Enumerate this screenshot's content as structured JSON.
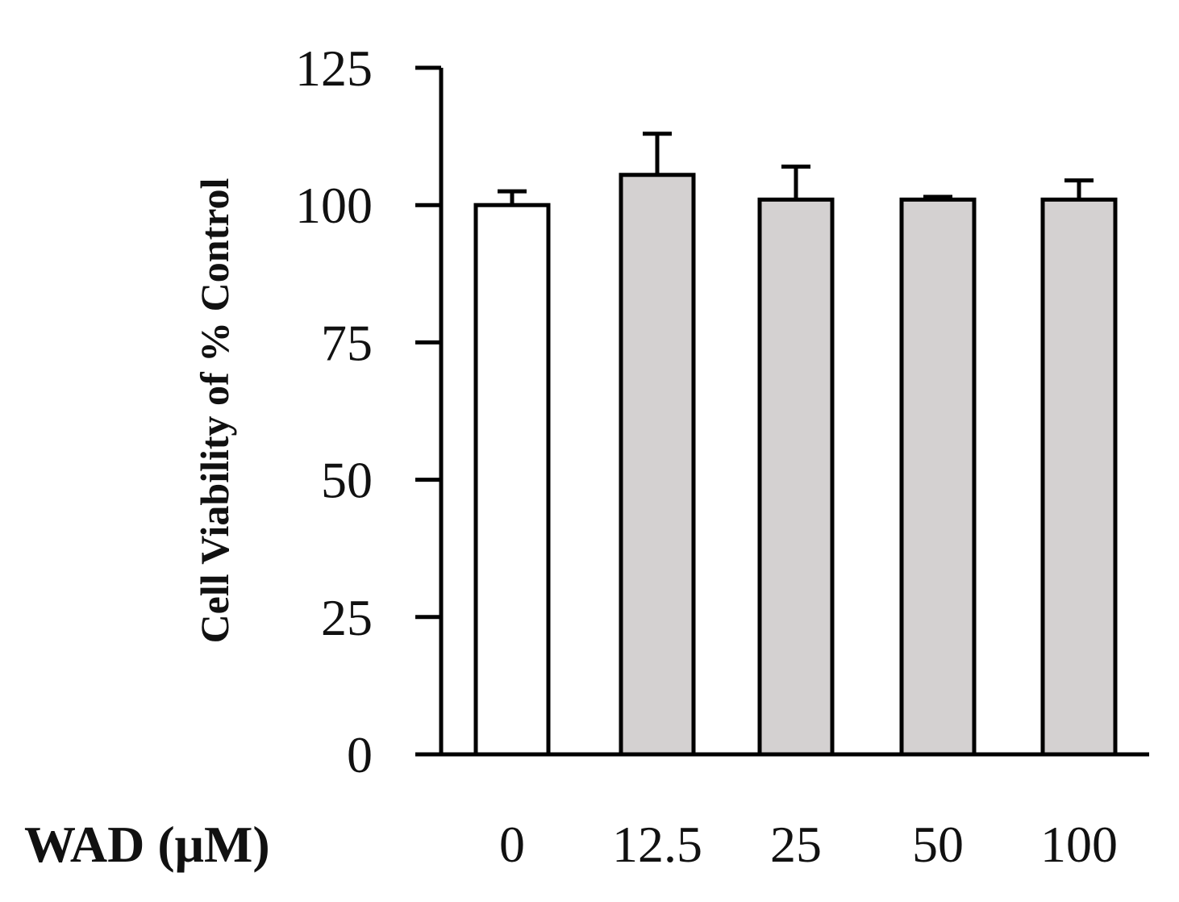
{
  "chart_data": {
    "type": "bar",
    "title": "",
    "xlabel": "WAD (μM)",
    "ylabel": "Cell Viability of % Control",
    "categories": [
      "0",
      "12.5",
      "25",
      "50",
      "100"
    ],
    "values": [
      100,
      105.5,
      101,
      101,
      101
    ],
    "errors": [
      2.5,
      7.5,
      6,
      0.5,
      3.5
    ],
    "ylim": [
      0,
      125
    ],
    "yticks": [
      0,
      25,
      50,
      75,
      100,
      125
    ],
    "bar_colors": [
      "#ffffff",
      "#d4d1d1",
      "#d4d1d1",
      "#d4d1d1",
      "#d4d1d1"
    ],
    "edge_color": "#000000",
    "grid": false,
    "legend": "none"
  }
}
